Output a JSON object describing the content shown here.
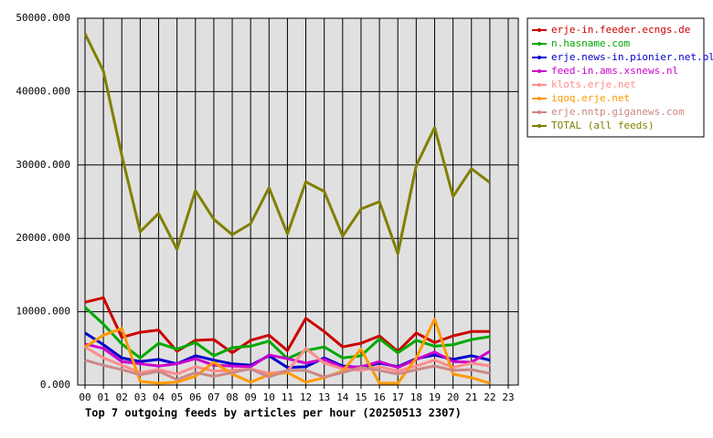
{
  "chart_data": {
    "type": "line",
    "title": "Top 7 outgoing feeds by articles per hour (20250513 2307)",
    "categories": [
      "00",
      "01",
      "02",
      "03",
      "04",
      "05",
      "06",
      "07",
      "08",
      "09",
      "10",
      "11",
      "12",
      "13",
      "14",
      "15",
      "16",
      "17",
      "18",
      "19",
      "20",
      "21",
      "22",
      "23"
    ],
    "ylim": [
      0,
      50000
    ],
    "yticks": [
      {
        "value": 0,
        "label": "0.000"
      },
      {
        "value": 10000,
        "label": "10000.000"
      },
      {
        "value": 20000,
        "label": "20000.000"
      },
      {
        "value": 30000,
        "label": "30000.000"
      },
      {
        "value": 40000,
        "label": "40000.000"
      },
      {
        "value": 50000,
        "label": "50000.000"
      }
    ],
    "grid": true,
    "legend": "right",
    "series": [
      {
        "name": "erje-in.feeder.ecngs.de",
        "color": "#cc0000",
        "values": [
          11300,
          11900,
          6500,
          7200,
          7500,
          4600,
          6100,
          6200,
          4400,
          6100,
          6800,
          4700,
          9100,
          7300,
          5200,
          5700,
          6700,
          4600,
          7100,
          5800,
          6700,
          7300,
          7300,
          null
        ]
      },
      {
        "name": "n.hasname.com",
        "color": "#00aa00",
        "values": [
          10600,
          8300,
          5600,
          3700,
          5700,
          4900,
          5800,
          4000,
          5100,
          5300,
          6000,
          3600,
          4700,
          5200,
          3700,
          4000,
          6300,
          4400,
          6100,
          5300,
          5500,
          6200,
          6600,
          null
        ]
      },
      {
        "name": "erje.news-in.pionier.net.pl",
        "color": "#0000cc",
        "values": [
          7100,
          5500,
          3700,
          3200,
          3500,
          2900,
          4000,
          3400,
          2900,
          2700,
          4000,
          2400,
          2500,
          3700,
          2600,
          2400,
          3000,
          2500,
          3600,
          4100,
          3500,
          4000,
          3400,
          null
        ]
      },
      {
        "name": "feed-in.ams.xsnews.nl",
        "color": "#cc00cc",
        "values": [
          5600,
          5000,
          3200,
          2900,
          2600,
          2900,
          3600,
          2700,
          2600,
          2500,
          4100,
          3600,
          3000,
          3500,
          2400,
          2500,
          3200,
          2400,
          3500,
          4500,
          3200,
          3100,
          4600,
          null
        ]
      },
      {
        "name": "klots.erje.net",
        "color": "#ff8c8c",
        "values": [
          5200,
          3700,
          2700,
          1700,
          2100,
          1500,
          2500,
          1900,
          2000,
          2200,
          1600,
          1900,
          5000,
          3000,
          2200,
          2000,
          2500,
          1900,
          2600,
          3400,
          2400,
          3000,
          2600,
          null
        ]
      },
      {
        "name": "iqoq.erje.net",
        "color": "#ff9900",
        "values": [
          5200,
          6800,
          7700,
          500,
          250,
          400,
          1200,
          3100,
          1500,
          400,
          1400,
          1700,
          400,
          1000,
          1900,
          4900,
          250,
          250,
          3700,
          9000,
          1500,
          1000,
          250,
          null
        ]
      },
      {
        "name": "erje.nntp.giganews.com",
        "color": "#cc8888",
        "values": [
          3400,
          2700,
          2100,
          1400,
          1900,
          750,
          1700,
          1200,
          1700,
          2200,
          1100,
          2000,
          2000,
          1100,
          1700,
          2400,
          2000,
          1500,
          2100,
          2600,
          2000,
          2100,
          1600,
          null
        ]
      },
      {
        "name": "TOTAL (all feeds)",
        "color": "#808000",
        "values": [
          47900,
          42800,
          31300,
          20900,
          23400,
          18500,
          26500,
          22600,
          20500,
          22000,
          26900,
          20600,
          27700,
          26400,
          20300,
          24000,
          25000,
          17900,
          29900,
          35100,
          25700,
          29500,
          27600,
          null
        ]
      }
    ]
  }
}
